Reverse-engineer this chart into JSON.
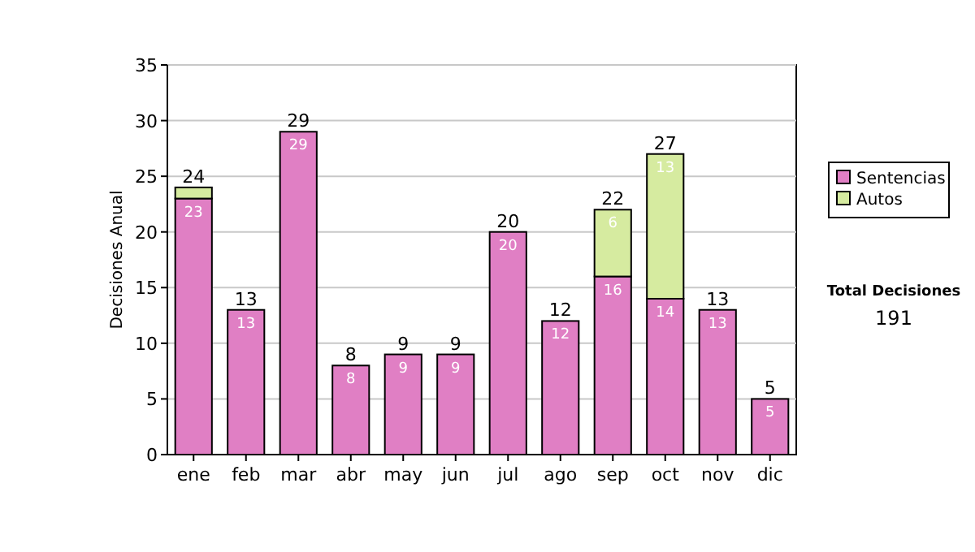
{
  "chart_data": {
    "type": "bar",
    "stacked": true,
    "ylabel": "Decisiones Anual",
    "categories": [
      "ene",
      "feb",
      "mar",
      "abr",
      "may",
      "jun",
      "jul",
      "ago",
      "sep",
      "oct",
      "nov",
      "dic"
    ],
    "series": [
      {
        "name": "Sentencias",
        "color": "#e07fc4",
        "values": [
          23,
          13,
          29,
          8,
          9,
          9,
          20,
          12,
          16,
          14,
          13,
          5
        ],
        "value_labels": [
          "23",
          "13",
          "29",
          "8",
          "9",
          "9",
          "20",
          "12",
          "16",
          "14",
          "13",
          "5"
        ]
      },
      {
        "name": "Autos",
        "color": "#d6eba0",
        "values": [
          1,
          0,
          0,
          0,
          0,
          0,
          0,
          0,
          6,
          13,
          0,
          0
        ],
        "value_labels": [
          null,
          null,
          null,
          null,
          null,
          null,
          null,
          null,
          "6",
          "13",
          null,
          null
        ]
      }
    ],
    "totals": [
      "24",
      "13",
      "29",
      "8",
      "9",
      "9",
      "20",
      "12",
      "22",
      "27",
      "13",
      "5"
    ],
    "ylim": [
      0,
      35
    ],
    "yticks": [
      0,
      5,
      10,
      15,
      20,
      25,
      30,
      35
    ],
    "grid": "y",
    "legend": "right",
    "annotations": [
      "Total Decisiones",
      "191"
    ]
  }
}
